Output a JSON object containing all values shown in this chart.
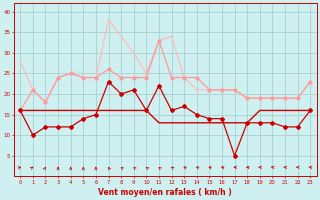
{
  "xlabel": "Vent moyen/en rafales ( km/h )",
  "x": [
    0,
    1,
    2,
    3,
    4,
    5,
    6,
    7,
    8,
    9,
    10,
    11,
    12,
    13,
    14,
    15,
    16,
    17,
    18,
    19,
    20,
    21,
    22,
    23
  ],
  "line1_dark_red": [
    16,
    10,
    12,
    12,
    12,
    14,
    15,
    23,
    20,
    21,
    16,
    22,
    16,
    17,
    15,
    14,
    14,
    5,
    13,
    13,
    13,
    12,
    12,
    16
  ],
  "line2_dark_red_flat": [
    16,
    16,
    16,
    16,
    16,
    16,
    16,
    16,
    16,
    16,
    16,
    13,
    13,
    13,
    13,
    13,
    13,
    13,
    13,
    16,
    16,
    16,
    16,
    16
  ],
  "line3_pink_markers": [
    16,
    21,
    18,
    24,
    25,
    24,
    24,
    26,
    24,
    24,
    24,
    33,
    24,
    24,
    24,
    21,
    21,
    21,
    19,
    19,
    19,
    19,
    19,
    23
  ],
  "line4_light_pink": [
    28,
    21,
    18,
    24,
    25,
    24,
    24,
    38,
    34,
    30,
    25,
    33,
    34,
    24,
    21,
    21,
    21,
    21,
    19,
    19,
    19,
    19,
    19,
    23
  ],
  "bg_color": "#cff0f0",
  "grid_color": "#a8d0d0",
  "dark_red": "#cc0000",
  "mid_red": "#dd4444",
  "pink": "#ff9999",
  "light_pink": "#ffbbbb",
  "ylim": [
    0,
    42
  ],
  "yticks": [
    5,
    10,
    15,
    20,
    25,
    30,
    35,
    40
  ],
  "arrow_angles": [
    45,
    60,
    80,
    90,
    90,
    90,
    90,
    100,
    110,
    110,
    110,
    110,
    120,
    130,
    130,
    135,
    140,
    145,
    150,
    155,
    160,
    165,
    170,
    170
  ]
}
